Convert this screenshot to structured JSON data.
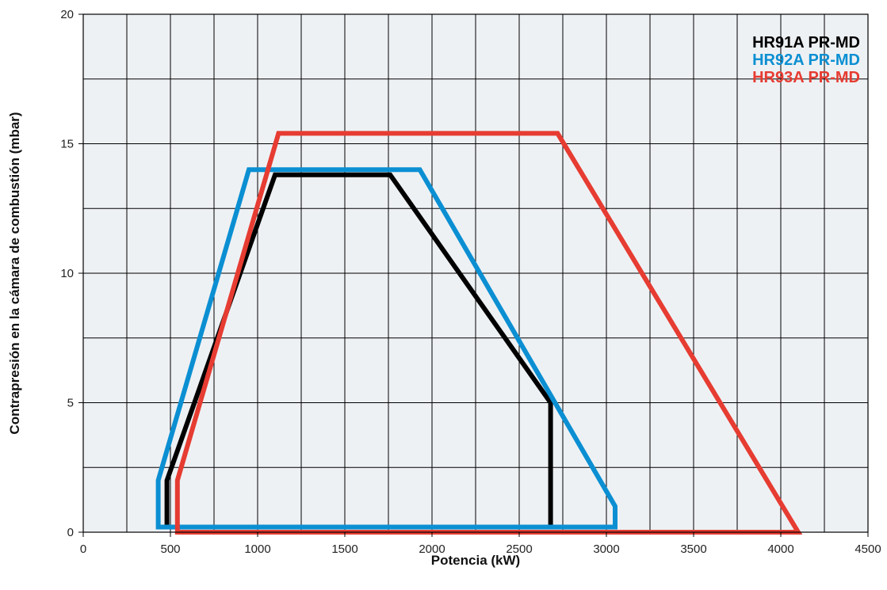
{
  "chart_data": {
    "type": "area",
    "xlabel": "Potencia (kW)",
    "ylabel": "Contrapresión en la cámara de combustión (mbar)",
    "xlim": [
      0,
      4500
    ],
    "ylim": [
      0,
      20
    ],
    "xticks": [
      0,
      500,
      1000,
      1500,
      2000,
      2500,
      3000,
      3500,
      4000,
      4500
    ],
    "xtick_labels": [
      "0",
      "500",
      "1000",
      "1500",
      "2000",
      "2500",
      "3000",
      "3500",
      "4000",
      "4500"
    ],
    "yticks": [
      0,
      5,
      10,
      15,
      20
    ],
    "ytick_labels": [
      "0",
      "5",
      "10",
      "15",
      "20"
    ],
    "x_gridlines": [
      0,
      250,
      500,
      750,
      1000,
      1250,
      1500,
      1750,
      2000,
      2250,
      2500,
      2750,
      3000,
      3250,
      3500,
      3750,
      4000,
      4250,
      4500
    ],
    "y_gridlines": [
      0,
      2.5,
      5,
      7.5,
      10,
      12.5,
      15,
      17.5,
      20
    ],
    "grid": true,
    "legend_position": "top-right",
    "background_color": "#eef1f4",
    "series": [
      {
        "model": "HR91A",
        "suffix": "PR-MD",
        "color": "#000000",
        "suffix_color": "#000000",
        "points": [
          [
            480,
            0.2
          ],
          [
            480,
            2.0
          ],
          [
            1100,
            13.8
          ],
          [
            1760,
            13.8
          ],
          [
            2680,
            5.0
          ],
          [
            2680,
            0.2
          ]
        ]
      },
      {
        "model": "HR92A",
        "suffix": "PR-MD",
        "color": "#0b8fd2",
        "suffix_color": "#0b8fd2",
        "points": [
          [
            430,
            0.2
          ],
          [
            430,
            2.0
          ],
          [
            950,
            14.0
          ],
          [
            1930,
            14.0
          ],
          [
            3050,
            1.0
          ],
          [
            3050,
            0.2
          ]
        ]
      },
      {
        "model": "HR93A",
        "suffix": "PR-MD",
        "color": "#e63c32",
        "suffix_color": "#e63c32",
        "points": [
          [
            540,
            0.0
          ],
          [
            540,
            2.0
          ],
          [
            1120,
            15.4
          ],
          [
            2720,
            15.4
          ],
          [
            4100,
            0.0
          ]
        ]
      }
    ]
  }
}
